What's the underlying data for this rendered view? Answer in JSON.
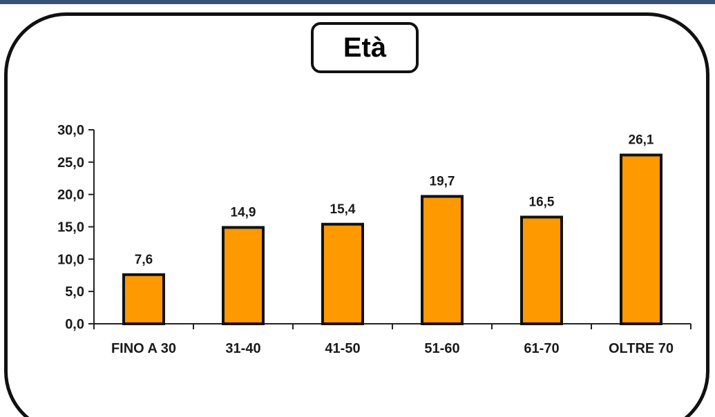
{
  "chart_data": {
    "type": "bar",
    "title": "Età",
    "xlabel": "",
    "ylabel": "",
    "categories": [
      "FINO A 30",
      "31-40",
      "41-50",
      "51-60",
      "61-70",
      "OLTRE 70"
    ],
    "values": [
      7.6,
      14.9,
      15.4,
      19.7,
      16.5,
      26.1
    ],
    "value_labels": [
      "7,6",
      "14,9",
      "15,4",
      "19,7",
      "16,5",
      "26,1"
    ],
    "ylim": [
      0,
      30
    ],
    "yticks": [
      0,
      5,
      10,
      15,
      20,
      25,
      30
    ],
    "ytick_labels": [
      "0,0",
      "5,0",
      "10,0",
      "15,0",
      "20,0",
      "25,0",
      "30,0"
    ],
    "grid": false,
    "legend": "none",
    "colors": {
      "bar_fill": "#ff9900",
      "bar_stroke": "#111111",
      "frame": "#111111",
      "top_rule": "#3a5078"
    }
  }
}
